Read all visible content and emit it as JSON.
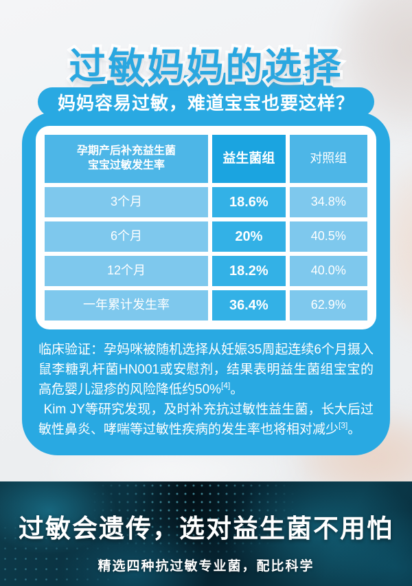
{
  "page": {
    "title": "过敏妈妈的选择",
    "banner": "妈妈容易过敏，难道宝宝也要这样？"
  },
  "table": {
    "header": {
      "col1_line1": "孕期产后补充益生菌",
      "col1_line2": "宝宝过敏发生率",
      "col2": "益生菌组",
      "col3": "对照组"
    },
    "rows": [
      {
        "label": "3个月",
        "probiotic": "18.6%",
        "control": "34.8%"
      },
      {
        "label": "6个月",
        "probiotic": "20%",
        "control": "40.5%"
      },
      {
        "label": "12个月",
        "probiotic": "18.2%",
        "control": "40.0%"
      },
      {
        "label": "一年累计发生率",
        "probiotic": "36.4%",
        "control": "62.9%"
      }
    ]
  },
  "clinical": {
    "p1_main": "临床验证：孕妈咪被随机选择从妊娠35周起连续6个月摄入鼠李糖乳杆菌HN001或安慰剂，结果表明益生菌组宝宝的高危婴儿湿疹的风险降低约50%",
    "p1_ref": "[4]",
    "p1_end": "。",
    "p2_main": "Kim JY等研究发现，及时补充抗过敏性益生菌，长大后过敏性鼻炎、哮喘等过敏性疾病的发生率也将相对减少",
    "p2_ref": "[3]",
    "p2_end": "。"
  },
  "footer": {
    "headline": "过敏会遗传，选对益生菌不用怕",
    "subline": "精选四种抗过敏专业菌，配比科学"
  },
  "colors": {
    "brand_blue": "#29a9e2",
    "header_cell": "#4db6e7",
    "strong_cell": "#1ba4e0",
    "light_cell": "#7ec8ed",
    "number_cell": "#33b1e6",
    "footer_bg_dark": "#062330",
    "footer_teal": "#127a96"
  }
}
